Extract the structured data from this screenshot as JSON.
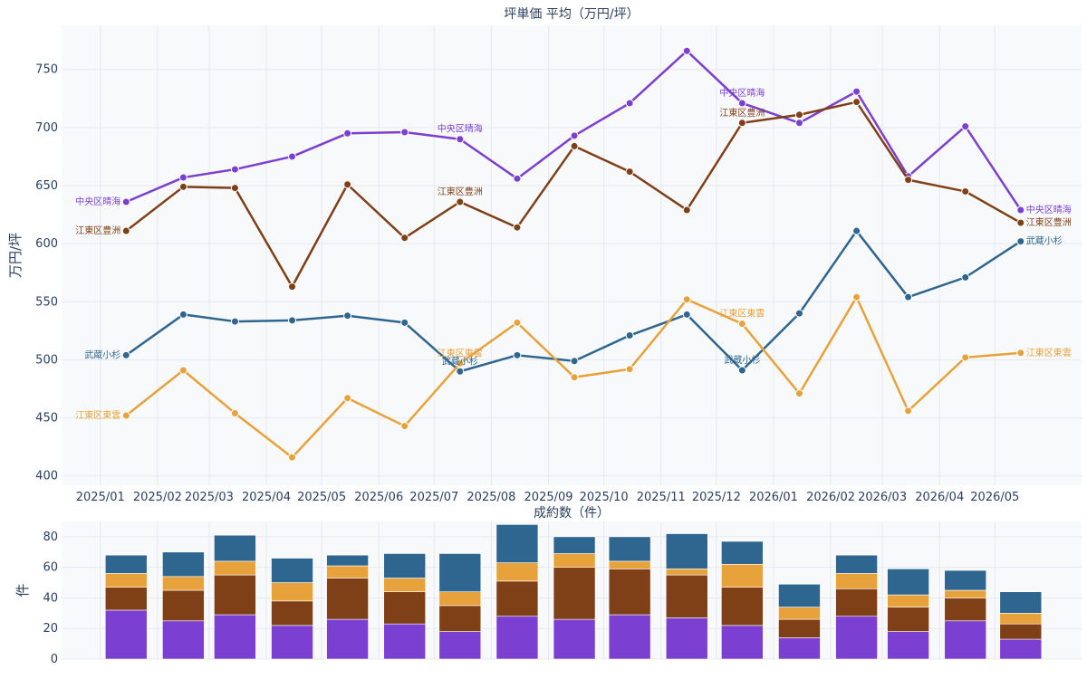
{
  "colors": {
    "harumi": "#7b3fd1",
    "toyosu": "#7f3f17",
    "musashikosugi": "#2e6690",
    "shinonome": "#e8a23c",
    "plot_bg": "#f8f9fb",
    "grid": "#e6e9ef"
  },
  "chart_data": [
    {
      "type": "line",
      "title": "坪単価 平均（万円/坪）",
      "xlabel": "",
      "ylabel": "万円/坪",
      "categories": [
        "2025/01",
        "2025/02",
        "2025/03",
        "2025/04",
        "2025/05",
        "2025/06",
        "2025/07",
        "2025/08",
        "2025/09",
        "2025/10",
        "2025/11",
        "2025/12",
        "2026/01",
        "2026/02",
        "2026/03",
        "2026/04",
        "2026/05"
      ],
      "x_positions": [
        "2025-01-15",
        "2025-02-15",
        "2025-03-15",
        "2025-04-15",
        "2025-05-15",
        "2025-06-15",
        "2025-07-15",
        "2025-08-15",
        "2025-09-15",
        "2025-10-15",
        "2025-11-15",
        "2025-12-15",
        "2026-01-15",
        "2026-02-15",
        "2026-03-15",
        "2026-04-15",
        "2026-05-15"
      ],
      "tick_positions": [
        "2025-01-01",
        "2025-02-01",
        "2025-03-01",
        "2025-04-01",
        "2025-05-01",
        "2025-06-01",
        "2025-07-01",
        "2025-08-01",
        "2025-09-01",
        "2025-10-01",
        "2025-11-01",
        "2025-12-01",
        "2026-01-01",
        "2026-02-01",
        "2026-03-01",
        "2026-04-01",
        "2026-05-01"
      ],
      "ylim": [
        392,
        788
      ],
      "yticks": [
        400,
        450,
        500,
        550,
        600,
        650,
        700,
        750
      ],
      "grid": true,
      "series": [
        {
          "name": "中央区晴海",
          "color_key": "harumi",
          "values": [
            636,
            657,
            664,
            675,
            695,
            696,
            690,
            656,
            693,
            721,
            766,
            721,
            704,
            731,
            658,
            701,
            629
          ],
          "labels": [
            {
              "index": 0,
              "text": "中央区晴海",
              "pos": "left"
            },
            {
              "index": 6,
              "text": "中央区晴海",
              "pos": "above"
            },
            {
              "index": 11,
              "text": "中央区晴海",
              "pos": "above"
            },
            {
              "index": 16,
              "text": "中央区晴海",
              "pos": "right"
            }
          ]
        },
        {
          "name": "江東区豊洲",
          "color_key": "toyosu",
          "values": [
            611,
            649,
            648,
            563,
            651,
            605,
            636,
            614,
            684,
            662,
            629,
            704,
            711,
            722,
            655,
            645,
            618
          ],
          "labels": [
            {
              "index": 0,
              "text": "江東区豊洲",
              "pos": "left"
            },
            {
              "index": 6,
              "text": "江東区豊洲",
              "pos": "above"
            },
            {
              "index": 11,
              "text": "江東区豊洲",
              "pos": "above"
            },
            {
              "index": 16,
              "text": "江東区豊洲",
              "pos": "right"
            }
          ]
        },
        {
          "name": "武蔵小杉",
          "color_key": "musashikosugi",
          "values": [
            504,
            539,
            533,
            534,
            538,
            532,
            490,
            504,
            499,
            521,
            539,
            491,
            540,
            611,
            554,
            571,
            602
          ],
          "labels": [
            {
              "index": 0,
              "text": "武蔵小杉",
              "pos": "left"
            },
            {
              "index": 6,
              "text": "武蔵小杉",
              "pos": "at"
            },
            {
              "index": 11,
              "text": "武蔵小杉",
              "pos": "above"
            },
            {
              "index": 16,
              "text": "武蔵小杉",
              "pos": "right"
            }
          ]
        },
        {
          "name": "江東区東雲",
          "color_key": "shinonome",
          "values": [
            452,
            491,
            454,
            416,
            467,
            443,
            497,
            532,
            485,
            492,
            552,
            531,
            471,
            554,
            456,
            502,
            506
          ],
          "labels": [
            {
              "index": 0,
              "text": "江東区東雲",
              "pos": "left"
            },
            {
              "index": 6,
              "text": "江東区東雲",
              "pos": "at"
            },
            {
              "index": 11,
              "text": "江東区東雲",
              "pos": "above"
            },
            {
              "index": 16,
              "text": "江東区東雲",
              "pos": "right"
            }
          ]
        }
      ]
    },
    {
      "type": "bar",
      "stacked": true,
      "title": "成約数（件）",
      "xlabel": "",
      "ylabel": "件",
      "x_positions": [
        "2025-01-15",
        "2025-02-15",
        "2025-03-15",
        "2025-04-15",
        "2025-05-15",
        "2025-06-15",
        "2025-07-15",
        "2025-08-15",
        "2025-09-15",
        "2025-10-15",
        "2025-11-15",
        "2025-12-15",
        "2026-01-15",
        "2026-02-15",
        "2026-03-15",
        "2026-04-15",
        "2026-05-15"
      ],
      "ylim": [
        0,
        90
      ],
      "yticks": [
        0,
        20,
        40,
        60,
        80
      ],
      "grid": true,
      "series": [
        {
          "color_key": "harumi",
          "values": [
            32,
            25,
            29,
            22,
            26,
            23,
            18,
            28,
            26,
            29,
            27,
            22,
            14,
            28,
            18,
            25,
            13
          ]
        },
        {
          "color_key": "toyosu",
          "values": [
            15,
            20,
            26,
            16,
            27,
            21,
            17,
            23,
            34,
            30,
            28,
            25,
            12,
            18,
            16,
            15,
            10
          ]
        },
        {
          "color_key": "shinonome",
          "values": [
            9,
            9,
            9,
            12,
            8,
            9,
            9,
            12,
            9,
            5,
            4,
            15,
            8,
            10,
            8,
            5,
            7
          ]
        },
        {
          "color_key": "musashikosugi",
          "values": [
            12,
            16,
            17,
            16,
            7,
            16,
            25,
            25,
            11,
            16,
            23,
            15,
            15,
            12,
            17,
            13,
            14
          ]
        }
      ]
    }
  ]
}
